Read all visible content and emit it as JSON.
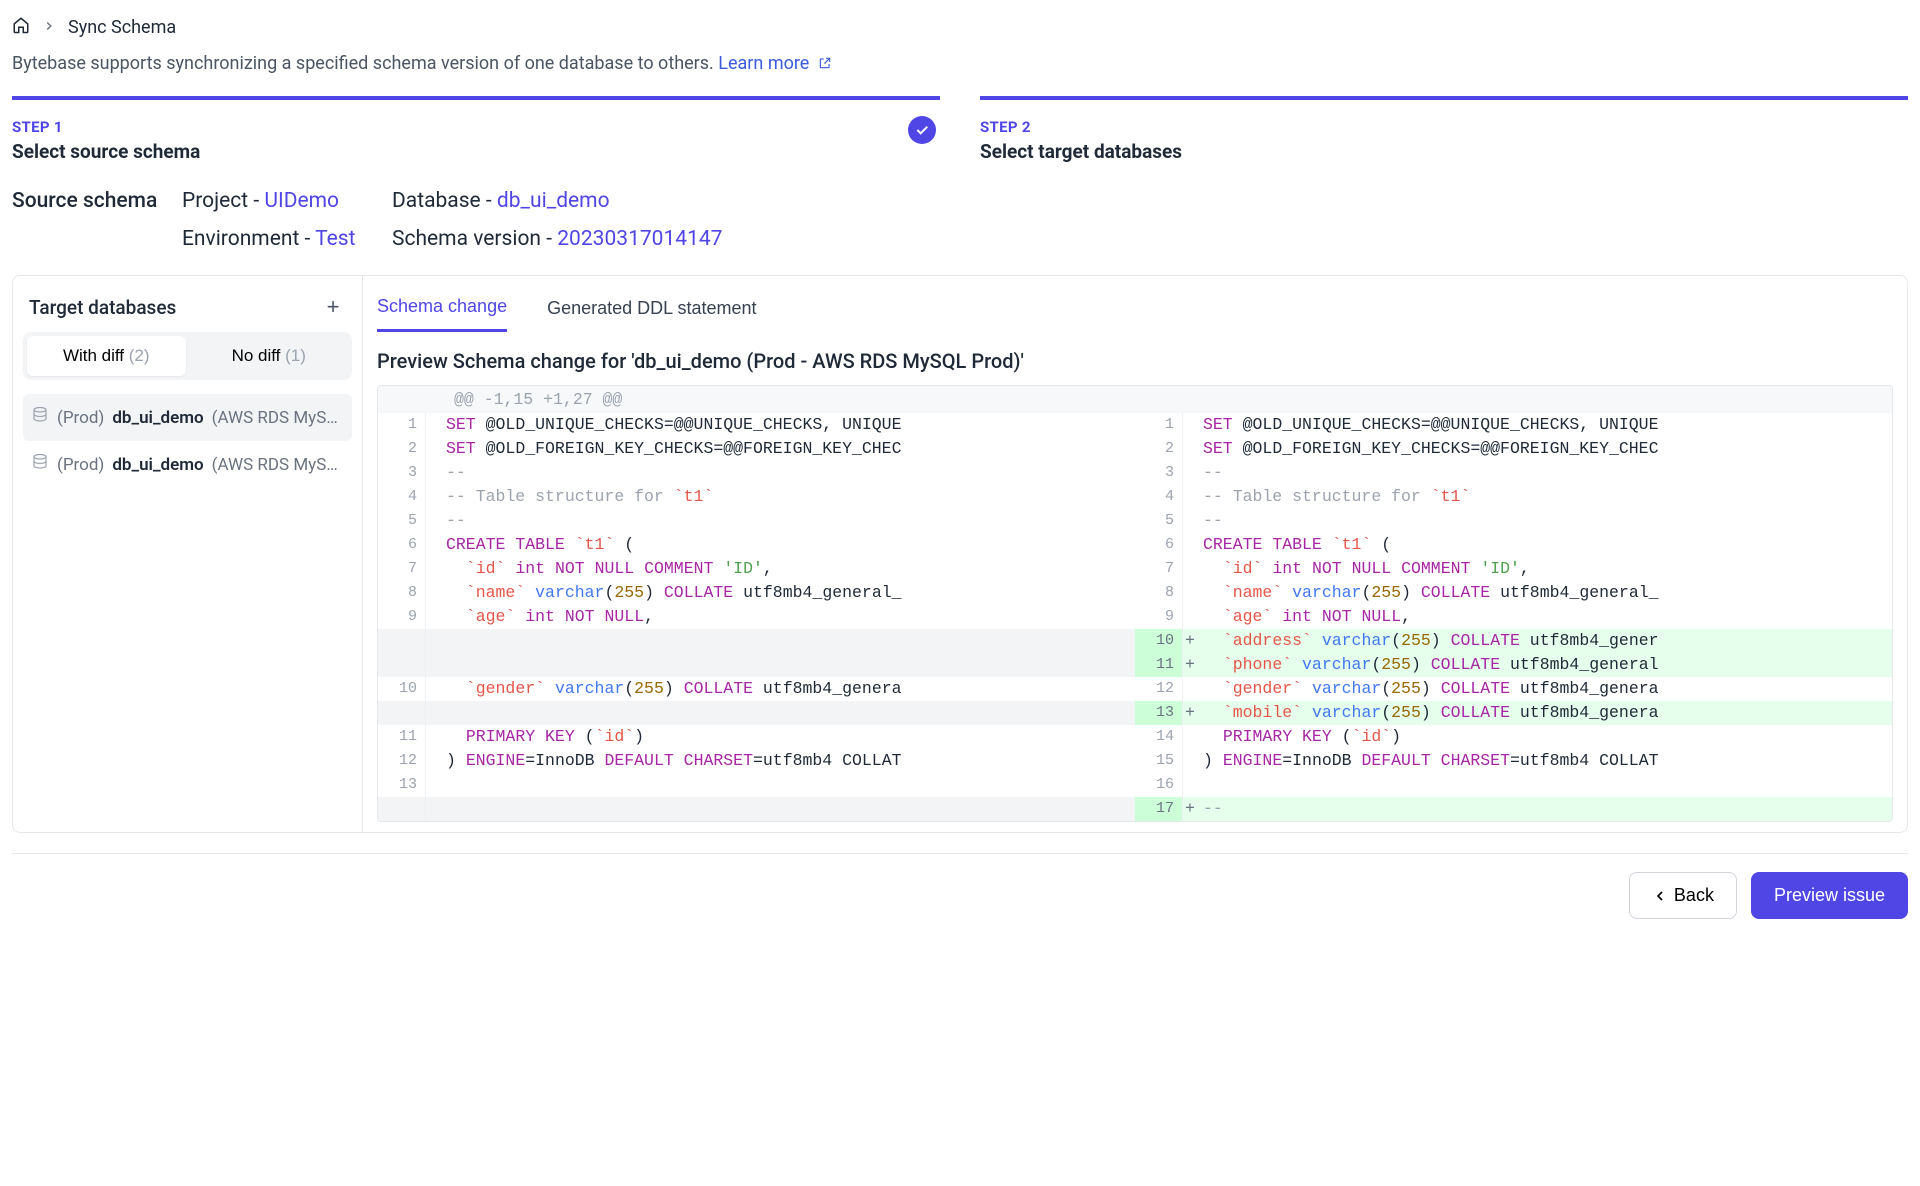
{
  "breadcrumb": {
    "current": "Sync Schema"
  },
  "description": {
    "text": "Bytebase supports synchronizing a specified schema version of one database to others.",
    "link": "Learn more"
  },
  "steps": [
    {
      "label": "STEP 1",
      "title": "Select source schema",
      "done": true
    },
    {
      "label": "STEP 2",
      "title": "Select target databases",
      "done": false
    }
  ],
  "source": {
    "heading": "Source schema",
    "project_label": "Project - ",
    "project_value": "UIDemo",
    "database_label": "Database - ",
    "database_value": "db_ui_demo",
    "env_label": "Environment - ",
    "env_value": "Test",
    "version_label": "Schema version - ",
    "version_value": "20230317014147"
  },
  "sidebar": {
    "title": "Target databases",
    "toggle": {
      "with_diff_label": "With diff ",
      "with_diff_count": "(2)",
      "no_diff_label": "No diff ",
      "no_diff_count": "(1)"
    },
    "items": [
      {
        "env": "(Prod) ",
        "name": "db_ui_demo",
        "inst": " (AWS RDS MyS…",
        "selected": true
      },
      {
        "env": "(Prod) ",
        "name": "db_ui_demo",
        "inst": " (AWS RDS MyS…",
        "selected": false
      }
    ]
  },
  "tabs": {
    "schema_change": "Schema change",
    "ddl": "Generated DDL statement"
  },
  "preview_title": "Preview Schema change for 'db_ui_demo (Prod - AWS RDS MySQL Prod)'",
  "diff": {
    "hunk": "@@ -1,15 +1,27 @@",
    "left": [
      {
        "n": "1",
        "t": "SET @OLD_UNIQUE_CHECKS=@@UNIQUE_CHECKS, UNIQUE"
      },
      {
        "n": "2",
        "t": "SET @OLD_FOREIGN_KEY_CHECKS=@@FOREIGN_KEY_CHEC"
      },
      {
        "n": "3",
        "t": "--",
        "c": "cm"
      },
      {
        "n": "4",
        "t": "-- Table structure for `t1`",
        "c": "cm"
      },
      {
        "n": "5",
        "t": "--",
        "c": "cm"
      },
      {
        "n": "6",
        "t": "CREATE TABLE `t1` ("
      },
      {
        "n": "7",
        "t": "  `id` int NOT NULL COMMENT 'ID',"
      },
      {
        "n": "8",
        "t": "  `name` varchar(255) COLLATE utf8mb4_general_"
      },
      {
        "n": "9",
        "t": "  `age` int NOT NULL,"
      },
      {
        "n": "",
        "t": "",
        "blank": true
      },
      {
        "n": "",
        "t": "",
        "blank": true
      },
      {
        "n": "10",
        "t": "  `gender` varchar(255) COLLATE utf8mb4_genera"
      },
      {
        "n": "",
        "t": "",
        "blank": true
      },
      {
        "n": "11",
        "t": "  PRIMARY KEY (`id`)"
      },
      {
        "n": "12",
        "t": ") ENGINE=InnoDB DEFAULT CHARSET=utf8mb4 COLLAT"
      },
      {
        "n": "13",
        "t": ""
      },
      {
        "n": "",
        "t": "",
        "blank": true
      }
    ],
    "right": [
      {
        "n": "1",
        "t": "SET @OLD_UNIQUE_CHECKS=@@UNIQUE_CHECKS, UNIQUE"
      },
      {
        "n": "2",
        "t": "SET @OLD_FOREIGN_KEY_CHECKS=@@FOREIGN_KEY_CHEC"
      },
      {
        "n": "3",
        "t": "--",
        "c": "cm"
      },
      {
        "n": "4",
        "t": "-- Table structure for `t1`",
        "c": "cm"
      },
      {
        "n": "5",
        "t": "--",
        "c": "cm"
      },
      {
        "n": "6",
        "t": "CREATE TABLE `t1` ("
      },
      {
        "n": "7",
        "t": "  `id` int NOT NULL COMMENT 'ID',"
      },
      {
        "n": "8",
        "t": "  `name` varchar(255) COLLATE utf8mb4_general_"
      },
      {
        "n": "9",
        "t": "  `age` int NOT NULL,"
      },
      {
        "n": "10",
        "t": "  `address` varchar(255) COLLATE utf8mb4_gener",
        "add": true
      },
      {
        "n": "11",
        "t": "  `phone` varchar(255) COLLATE utf8mb4_general",
        "add": true
      },
      {
        "n": "12",
        "t": "  `gender` varchar(255) COLLATE utf8mb4_genera"
      },
      {
        "n": "13",
        "t": "  `mobile` varchar(255) COLLATE utf8mb4_genera",
        "add": true
      },
      {
        "n": "14",
        "t": "  PRIMARY KEY (`id`)"
      },
      {
        "n": "15",
        "t": ") ENGINE=InnoDB DEFAULT CHARSET=utf8mb4 COLLAT"
      },
      {
        "n": "16",
        "t": ""
      },
      {
        "n": "17",
        "t": "--",
        "add": true,
        "c": "cm"
      }
    ]
  },
  "footer": {
    "back": "Back",
    "preview": "Preview issue"
  }
}
